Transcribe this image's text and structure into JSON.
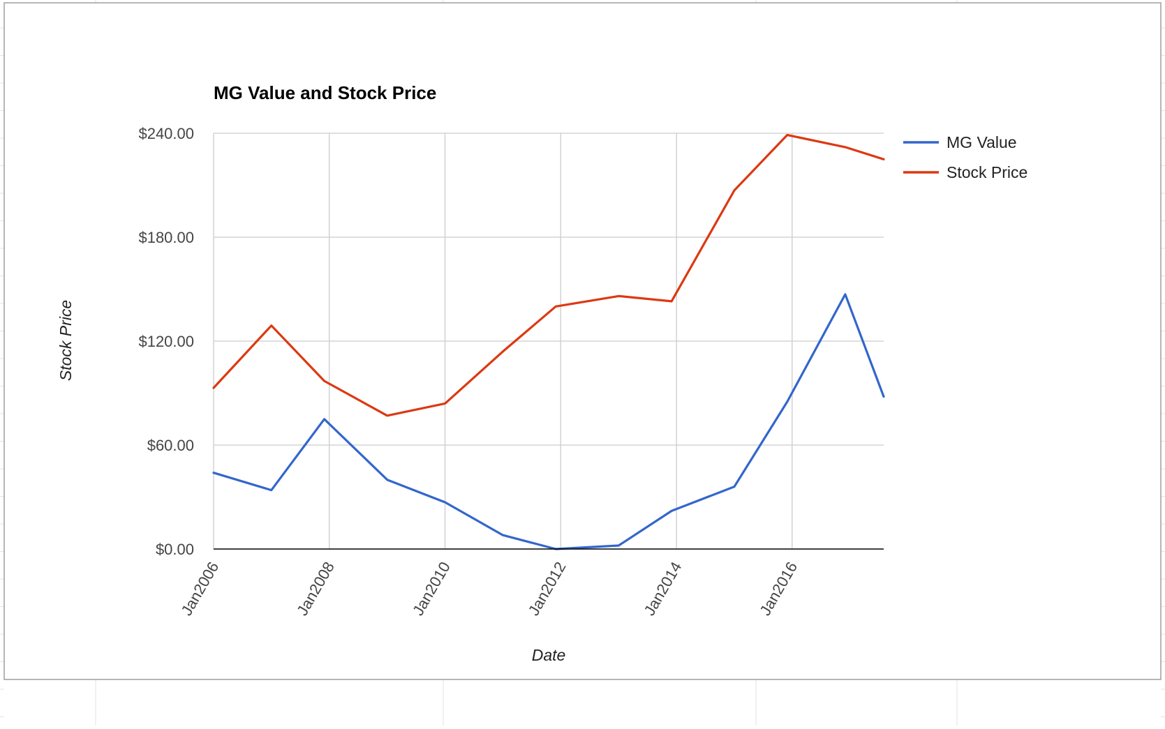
{
  "colors": {
    "mg_value": "#3366cc",
    "stock_price": "#dc3912",
    "gridline": "#cccccc",
    "axis": "#000000",
    "sheet_grid": "#e2e3e3",
    "frame": "#9e9e9e"
  },
  "chart_data": {
    "type": "line",
    "title": "MG Value and Stock Price",
    "xlabel": "Date",
    "ylabel": "Stock Price",
    "x_axis": {
      "type": "date",
      "range": [
        "2006-01-01",
        "2017-08-01"
      ],
      "ticks": [
        "2006-01-01",
        "2008-01-01",
        "2010-01-01",
        "2012-01-01",
        "2014-01-01",
        "2016-01-01"
      ],
      "tick_labels": [
        "Jan2006",
        "Jan2008",
        "Jan2010",
        "Jan2012",
        "Jan2014",
        "Jan2016"
      ]
    },
    "y_axis": {
      "range": [
        0,
        240
      ],
      "ticks": [
        0,
        60,
        120,
        180,
        240
      ],
      "tick_labels": [
        "$0.00",
        "$60.00",
        "$120.00",
        "$180.00",
        "$240.00"
      ]
    },
    "grid": true,
    "legend_position": "right",
    "series": [
      {
        "name": "MG Value",
        "color_key": "mg_value",
        "points": [
          {
            "x": "2006-01-01",
            "y": 44
          },
          {
            "x": "2007-01-01",
            "y": 34
          },
          {
            "x": "2007-12-01",
            "y": 75
          },
          {
            "x": "2009-01-01",
            "y": 40
          },
          {
            "x": "2010-01-01",
            "y": 27
          },
          {
            "x": "2011-01-01",
            "y": 8
          },
          {
            "x": "2011-12-01",
            "y": 0
          },
          {
            "x": "2013-01-01",
            "y": 2
          },
          {
            "x": "2013-12-01",
            "y": 22
          },
          {
            "x": "2015-01-01",
            "y": 36
          },
          {
            "x": "2015-12-01",
            "y": 85
          },
          {
            "x": "2016-12-01",
            "y": 147
          },
          {
            "x": "2017-08-01",
            "y": 88
          }
        ]
      },
      {
        "name": "Stock Price",
        "color_key": "stock_price",
        "points": [
          {
            "x": "2006-01-01",
            "y": 93
          },
          {
            "x": "2007-01-01",
            "y": 129
          },
          {
            "x": "2007-12-01",
            "y": 97
          },
          {
            "x": "2009-01-01",
            "y": 77
          },
          {
            "x": "2010-01-01",
            "y": 84
          },
          {
            "x": "2011-01-01",
            "y": 114
          },
          {
            "x": "2011-12-01",
            "y": 140
          },
          {
            "x": "2013-01-01",
            "y": 146
          },
          {
            "x": "2013-12-01",
            "y": 143
          },
          {
            "x": "2015-01-01",
            "y": 207
          },
          {
            "x": "2015-12-01",
            "y": 239
          },
          {
            "x": "2016-12-01",
            "y": 232
          },
          {
            "x": "2017-08-01",
            "y": 225
          }
        ]
      }
    ]
  }
}
